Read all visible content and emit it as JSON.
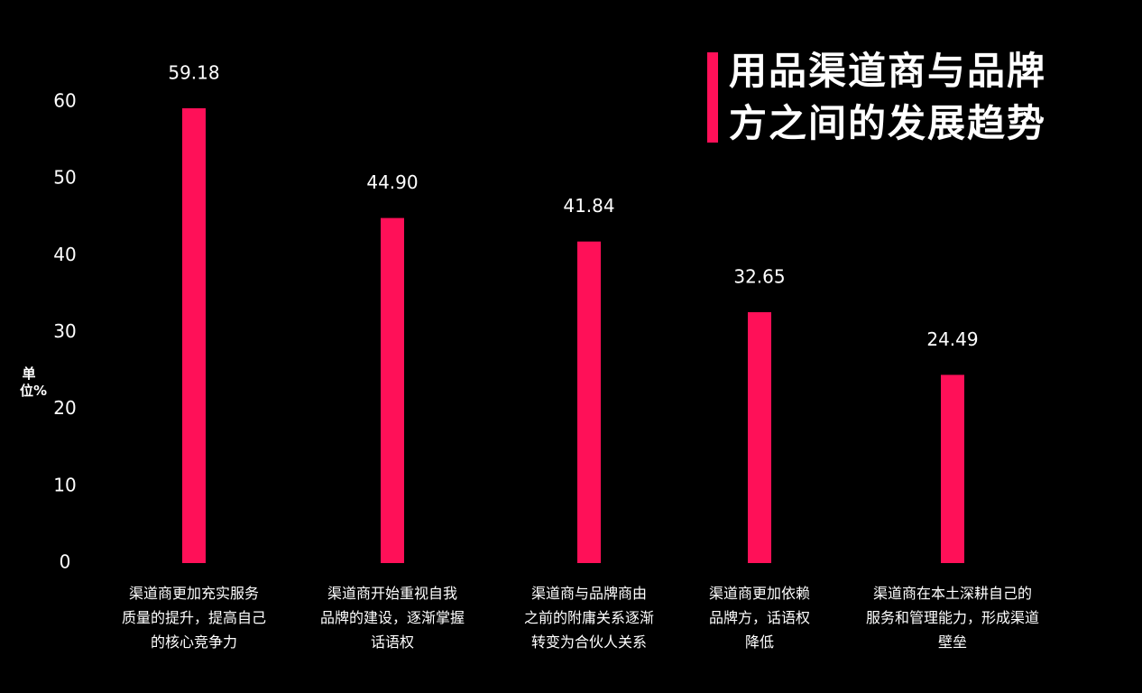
{
  "chart_data": {
    "type": "bar",
    "title": "用品渠道商与品牌\n方之间的发展趋势",
    "y_label": "单位%",
    "categories": [
      "渠道商更加充实服务\n质量的提升，提高自己\n的核心竞争力",
      "渠道商开始重视自我\n品牌的建设，逐渐掌握\n话语权",
      "渠道商与品牌商由\n之前的附庸关系逐渐\n转变为合伙人关系",
      "渠道商更加依赖\n品牌方，话语权\n降低",
      "渠道商在本土深耕自己的\n服务和管理能力，形成渠道\n壁垒"
    ],
    "values": [
      59.18,
      44.9,
      41.84,
      32.65,
      24.49
    ],
    "value_labels": [
      "59.18",
      "44.90",
      "41.84",
      "32.65",
      "24.49"
    ],
    "color": "#ff1058",
    "ylim": [
      0,
      60
    ],
    "yticks": [
      0,
      10,
      20,
      30,
      40,
      50,
      60
    ],
    "grid": false
  }
}
